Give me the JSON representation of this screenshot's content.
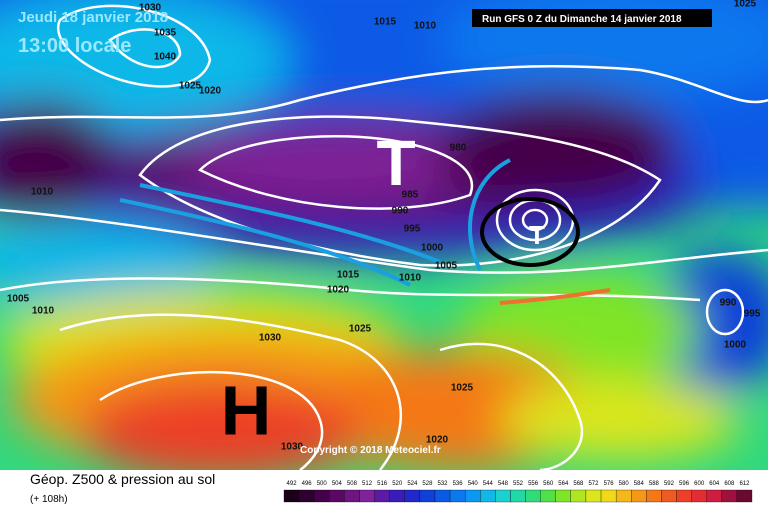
{
  "header": {
    "date": "Jeudi 18 janvier 2018",
    "time": "13:00 locale",
    "run": "Run GFS 0 Z du Dimanche 14 janvier 2018"
  },
  "copyright": "Copyright © 2018 Meteociel.fr",
  "symbols": {
    "low_main": "T",
    "low_secondary": "T",
    "high": "H"
  },
  "isobar_labels": [
    "1030",
    "1035",
    "1040",
    "1025",
    "1020",
    "1015",
    "1010",
    "1025",
    "980",
    "985",
    "990",
    "995",
    "1000",
    "1005",
    "1010",
    "1015",
    "1020",
    "1010",
    "1005",
    "1010",
    "1025",
    "1030",
    "1025",
    "1020",
    "1030",
    "990",
    "995",
    "1000"
  ],
  "legend": {
    "title": "Géop. Z500 & pression au sol",
    "subtitle": "(+ 108h)",
    "scale": [
      492,
      496,
      500,
      504,
      508,
      512,
      516,
      520,
      524,
      528,
      532,
      536,
      540,
      544,
      548,
      552,
      556,
      560,
      564,
      568,
      572,
      576,
      580,
      584,
      588,
      592,
      596,
      600,
      604,
      608,
      612
    ],
    "colors": [
      "#1a0018",
      "#2e0030",
      "#44004a",
      "#5a0864",
      "#6e1680",
      "#80229a",
      "#5c1aa8",
      "#3a1cb8",
      "#2028c8",
      "#1040d8",
      "#0a5ae6",
      "#0a78ee",
      "#0a98f0",
      "#10b8e8",
      "#1ad0d0",
      "#20d8a8",
      "#30dc78",
      "#50e048",
      "#80e428",
      "#b0e620",
      "#dce61c",
      "#f0d81a",
      "#f4b818",
      "#f49818",
      "#f47818",
      "#f05a20",
      "#ec4028",
      "#e42c34",
      "#d01c40",
      "#a0103c",
      "#6a0a30"
    ]
  }
}
